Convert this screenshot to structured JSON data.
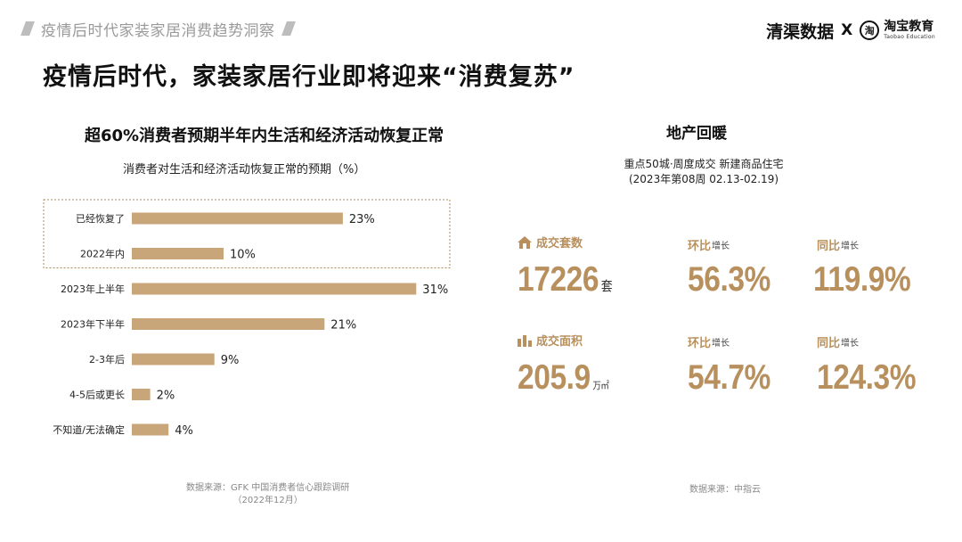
{
  "header": {
    "section_title": "疫情后时代家装家居消费趋势洞察",
    "brand_left": "清渠数据",
    "brand_x": "X",
    "brand_logo_glyph": "淘",
    "brand_right": "淘宝教育",
    "brand_right_en": "Taobao Education"
  },
  "main_title": "疫情后时代，家装家居行业即将迎来“消费复苏”",
  "left_panel": {
    "title": "超60%消费者预期半年内生活和经济活动恢复正常",
    "subtitle": "消费者对生活和经济活动恢复正常的预期（%）",
    "source_line1": "数据来源：GFK 中国消费者信心跟踪调研",
    "source_line2": "（2022年12月）"
  },
  "chart_data": {
    "type": "bar",
    "orientation": "horizontal",
    "title": "消费者对生活和经济活动恢复正常的预期（%）",
    "categories": [
      "已经恢复了",
      "2022年内",
      "2023年上半年",
      "2023年下半年",
      "2-3年后",
      "4-5后或更长",
      "不知道/无法确定"
    ],
    "values": [
      23,
      10,
      31,
      21,
      9,
      2,
      4
    ],
    "value_suffix": "%",
    "bar_color": "#c9a57a",
    "highlight_box_color": "#b08a5a",
    "highlighted_categories": [
      "已经恢复了",
      "2022年内"
    ]
  },
  "right_panel": {
    "title": "地产回暖",
    "subtitle_line1": "重点50城·周度成交 新建商品住宅",
    "subtitle_line2": "(2023年第08周 02.13-02.19)",
    "accent_color": "#b8905e",
    "row1": {
      "icon": "house-icon",
      "label_main": "成交",
      "label_highlight": "套数",
      "value": "17226",
      "unit": "套",
      "mom_label": "环比",
      "mom_suffix": "增长",
      "mom_value": "56.3%",
      "yoy_label": "同比",
      "yoy_suffix": "增长",
      "yoy_value": "119.9%"
    },
    "row2": {
      "icon": "bar-chart-icon",
      "label_main": "成交",
      "label_highlight": "面积",
      "value": "205.9",
      "unit": "万㎡",
      "mom_label": "环比",
      "mom_suffix": "增长",
      "mom_value": "54.7%",
      "yoy_label": "同比",
      "yoy_suffix": "增长",
      "yoy_value": "124.3%"
    },
    "source": "数据来源：中指云"
  }
}
